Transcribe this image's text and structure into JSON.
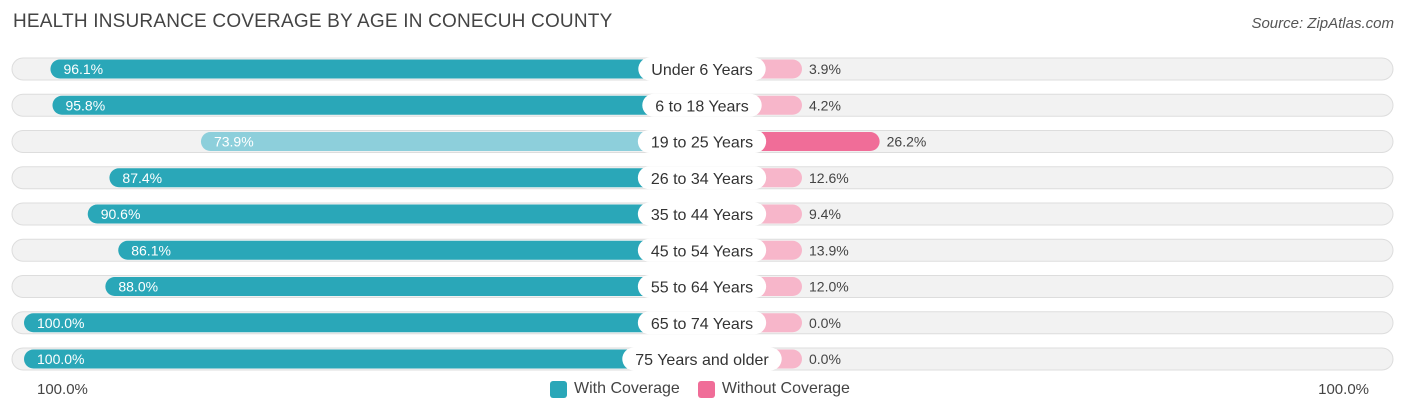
{
  "title": "HEALTH INSURANCE COVERAGE BY AGE IN CONECUH COUNTY",
  "source": "Source: ZipAtlas.com",
  "colors": {
    "with_strong": "#2aa7b8",
    "with_light": "#8dcfdb",
    "without_strong": "#f06d98",
    "without_light": "#f7b6ca",
    "row_bg": "#f2f2f2"
  },
  "chart_data": {
    "type": "bar",
    "orientation": "diverging-horizontal",
    "title": "HEALTH INSURANCE COVERAGE BY AGE IN CONECUH COUNTY",
    "categories": [
      "Under 6 Years",
      "6 to 18 Years",
      "19 to 25 Years",
      "26 to 34 Years",
      "35 to 44 Years",
      "45 to 54 Years",
      "55 to 64 Years",
      "65 to 74 Years",
      "75 Years and older"
    ],
    "series": [
      {
        "name": "With Coverage",
        "values": [
          96.1,
          95.8,
          73.9,
          87.4,
          90.6,
          86.1,
          88.0,
          100.0,
          100.0
        ],
        "labels": [
          "96.1%",
          "95.8%",
          "73.9%",
          "87.4%",
          "90.6%",
          "86.1%",
          "88.0%",
          "100.0%",
          "100.0%"
        ]
      },
      {
        "name": "Without Coverage",
        "values": [
          3.9,
          4.2,
          26.2,
          12.6,
          9.4,
          13.9,
          12.0,
          0.0,
          0.0
        ],
        "labels": [
          "3.9%",
          "4.2%",
          "26.2%",
          "12.6%",
          "9.4%",
          "13.9%",
          "12.0%",
          "0.0%",
          "0.0%"
        ]
      }
    ],
    "xlim": [
      -100,
      100
    ],
    "axis_left_label": "100.0%",
    "axis_right_label": "100.0%",
    "legend": [
      "With Coverage",
      "Without Coverage"
    ],
    "legend_position": "bottom-center"
  }
}
